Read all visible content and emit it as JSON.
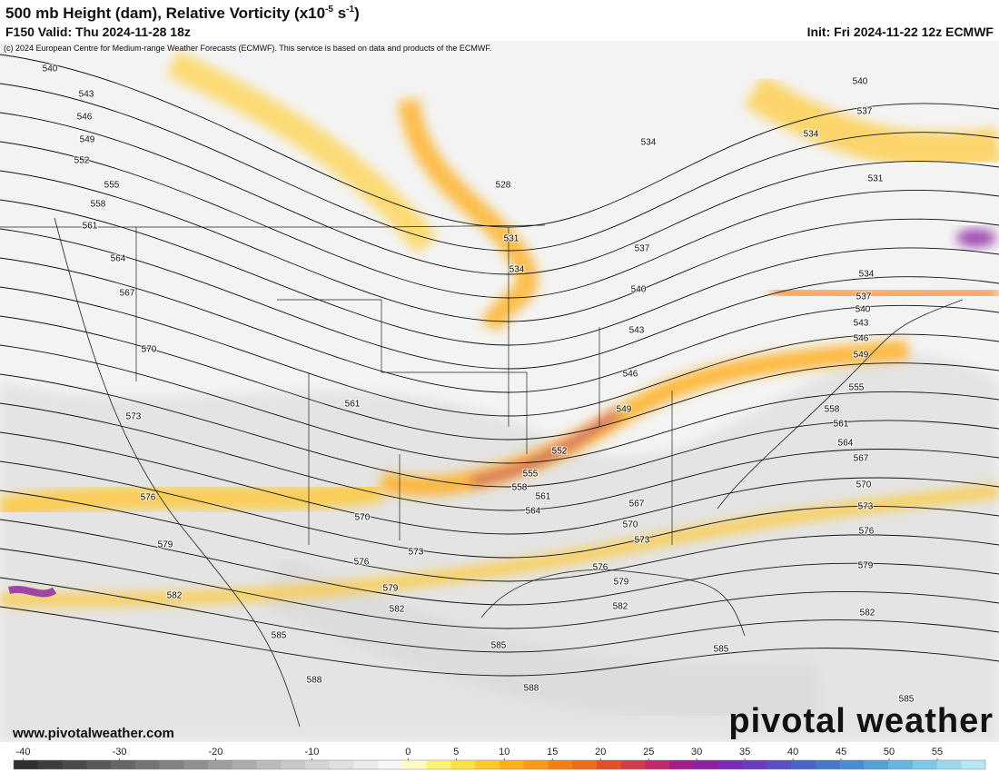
{
  "header": {
    "title": [
      "500 mb Height (dam), Relative Vorticity (x10",
      "-5",
      " s",
      "-1",
      ")"
    ],
    "subtitle": "F150 Valid: Thu 2024-11-28 18z",
    "init": "Init: Fri 2024-11-22 12z ECMWF",
    "copyright": "(c) 2024 European Centre for Medium-range Weather Forecasts (ECMWF). This service is based on data and products of the ECMWF."
  },
  "contours": {
    "labels": [
      540,
      543,
      546,
      549,
      552,
      555,
      558,
      561,
      564,
      567,
      570,
      573,
      576,
      579,
      582,
      585,
      588,
      561,
      570,
      576,
      579,
      582,
      573,
      585,
      588,
      528,
      531,
      534,
      537,
      540,
      543,
      546,
      549,
      552,
      555,
      558,
      561,
      564,
      567,
      570,
      573,
      576,
      579,
      582,
      585,
      534,
      540,
      537,
      534,
      531,
      534,
      537,
      540,
      543,
      546,
      549,
      555,
      558,
      561,
      564,
      567,
      570,
      573,
      576,
      579,
      582,
      585
    ]
  },
  "colorbar": {
    "lim": [
      -41,
      60
    ],
    "ticks": [
      -40,
      -30,
      -20,
      -10,
      0,
      5,
      10,
      15,
      20,
      25,
      30,
      35,
      40,
      45,
      50,
      55
    ],
    "colors": [
      "#2e2e2e",
      "#3c3c3c",
      "#4a4a4a",
      "#585858",
      "#666666",
      "#747474",
      "#828282",
      "#909090",
      "#9e9e9e",
      "#acacac",
      "#bababa",
      "#c8c8c8",
      "#d4d4d4",
      "#e0e0e0",
      "#ebebeb",
      "#f5f5f5",
      "#fff9c4",
      "#fff176",
      "#ffe04a",
      "#ffc830",
      "#ffb020",
      "#ff9a1a",
      "#f57f17",
      "#ec6a1a",
      "#e0502a",
      "#d03c48",
      "#c02a6a",
      "#a01e8a",
      "#8a22a0",
      "#7a2ab4",
      "#6a3cbc",
      "#5a50c0",
      "#4a64c4",
      "#4678c8",
      "#4a8cd0",
      "#56a0d8",
      "#68b4e0",
      "#80c8e8",
      "#9ad8ee",
      "#b4e8f4"
    ]
  },
  "footer": {
    "website": "www.pivotalweather.com",
    "logo": "pivotal weather"
  }
}
